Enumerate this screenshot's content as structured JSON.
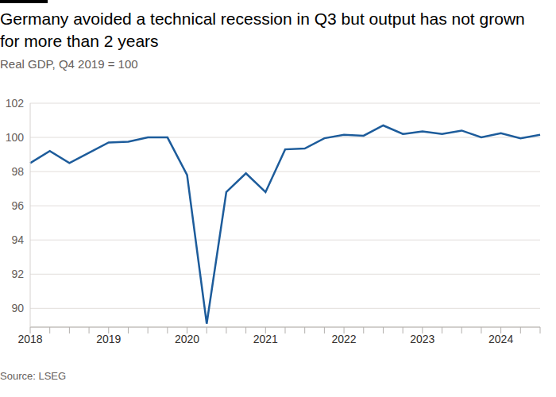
{
  "chart_data": {
    "type": "line",
    "title": "Germany avoided a technical recession in Q3 but output has not grown for more than 2 years",
    "subtitle": "Real GDP, Q4 2019 = 100",
    "source": "Source: LSEG",
    "categories": [
      "2018",
      null,
      null,
      null,
      "2019",
      null,
      null,
      null,
      "2020",
      null,
      null,
      null,
      "2021",
      null,
      null,
      null,
      "2022",
      null,
      null,
      null,
      "2023",
      null,
      null,
      null,
      "2024",
      null,
      null
    ],
    "values": [
      98.5,
      99.2,
      98.5,
      99.1,
      99.7,
      99.75,
      100.0,
      100.0,
      97.8,
      89.1,
      96.8,
      97.9,
      96.8,
      99.3,
      99.35,
      99.95,
      100.15,
      100.1,
      100.7,
      100.2,
      100.35,
      100.2,
      100.4,
      100.0,
      100.25,
      99.95,
      100.15
    ],
    "color": "#1d5c9b",
    "ylim": [
      88.9,
      102
    ],
    "yticks": [
      90,
      92,
      94,
      96,
      98,
      100,
      102
    ],
    "grid": true
  }
}
